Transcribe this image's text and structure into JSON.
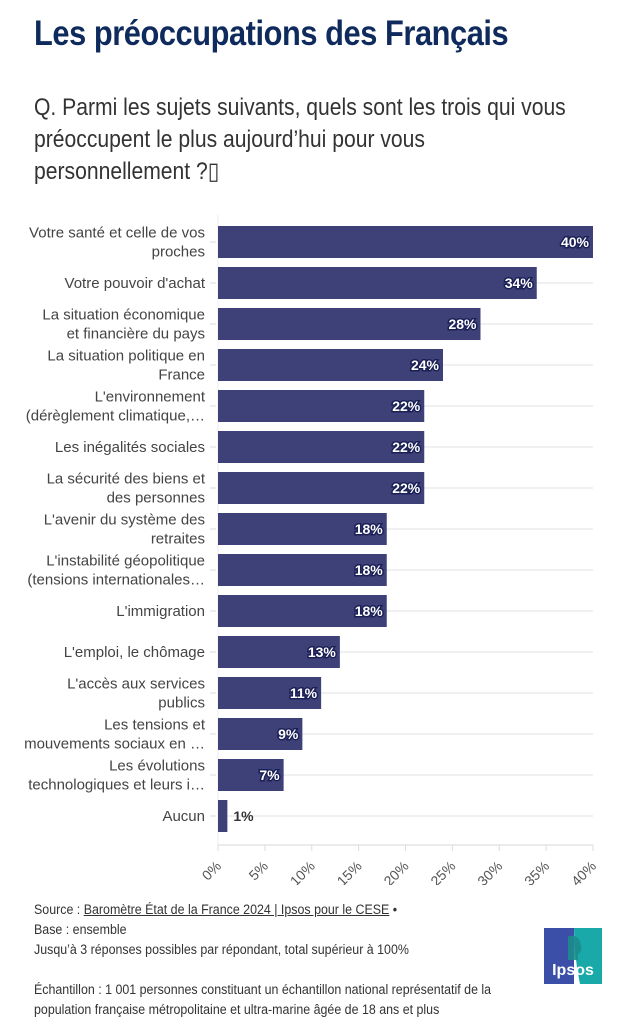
{
  "header": {
    "title": "Les préoccupations des Français",
    "question": "Q. Parmi les sujets suivants, quels sont les trois qui vous préoccupent le plus aujourd’hui pour vous personnellement ?▯"
  },
  "chart_data": {
    "type": "bar",
    "orientation": "horizontal",
    "title": "Les préoccupations des Français",
    "xlabel": "",
    "ylabel": "",
    "xlim": [
      0,
      40
    ],
    "grid": true,
    "color": "#3d4178",
    "categories": [
      [
        "Votre santé et celle de vos",
        "proches"
      ],
      [
        "Votre pouvoir d'achat"
      ],
      [
        "La situation économique",
        "et financière du pays"
      ],
      [
        "La situation politique en",
        "France"
      ],
      [
        "L'environnement",
        "(dérèglement climatique,…"
      ],
      [
        "Les inégalités sociales"
      ],
      [
        "La sécurité des biens et",
        "des personnes"
      ],
      [
        "L'avenir du système des",
        "retraites"
      ],
      [
        "L'instabilité géopolitique",
        "(tensions internationales…"
      ],
      [
        "L'immigration"
      ],
      [
        "L'emploi, le chômage"
      ],
      [
        "L'accès aux services",
        "publics"
      ],
      [
        "Les tensions et",
        "mouvements sociaux en …"
      ],
      [
        "Les évolutions",
        "technologiques et leurs i…"
      ],
      [
        "Aucun"
      ]
    ],
    "values": [
      40,
      34,
      28,
      24,
      22,
      22,
      22,
      18,
      18,
      18,
      13,
      11,
      9,
      7,
      1
    ],
    "value_labels": [
      "40%",
      "34%",
      "28%",
      "24%",
      "22%",
      "22%",
      "22%",
      "18%",
      "18%",
      "18%",
      "13%",
      "11%",
      "9%",
      "7%",
      "1%"
    ],
    "x_ticks": [
      "0%",
      "5%",
      "10%",
      "15%",
      "20%",
      "25%",
      "30%",
      "35%",
      "40%"
    ],
    "x_tick_values": [
      0,
      5,
      10,
      15,
      20,
      25,
      30,
      35,
      40
    ]
  },
  "footer": {
    "source_prefix": "Source : ",
    "source_link": "Baromètre État de la France 2024 | Ipsos pour le CESE",
    "source_suffix": " •",
    "base": "Base : ensemble",
    "note": "Jusqu’à 3 réponses possibles par répondant, total supérieur à 100%",
    "sample": "Échantillon : 1 001 personnes constituant un échantillon national représentatif de la population française métropolitaine et ultra-marine âgée de 18 ans et plus"
  },
  "logo": {
    "text": "Ipsos",
    "color_left": "#3b4fa8",
    "color_right": "#19a9a8"
  }
}
